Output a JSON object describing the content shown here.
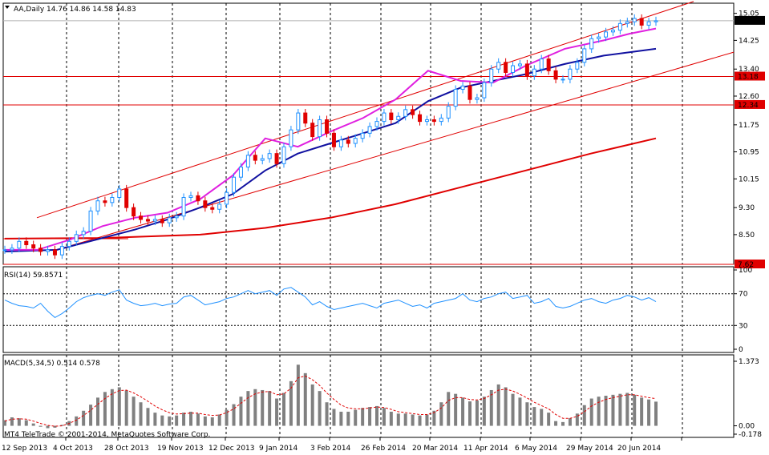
{
  "chart_data": [
    {
      "type": "candlestick",
      "title": "AA,Daily  14.76 14.86 14.58 14.83",
      "symbol": "AA",
      "timeframe": "Daily",
      "ohlc": {
        "open": 14.76,
        "high": 14.86,
        "low": 14.58,
        "close": 14.83
      },
      "yticks": [
        "15.05",
        "14.25",
        "13.40",
        "12.60",
        "11.75",
        "10.95",
        "10.15",
        "9.30",
        "8.50"
      ],
      "ylim": [
        7.62,
        15.35
      ],
      "current_price": "14.83",
      "hlines": [
        {
          "label": "13.18",
          "value": 13.18,
          "color": "#e00000"
        },
        {
          "label": "12.34",
          "value": 12.34,
          "color": "#e00000"
        },
        {
          "label": "7.62",
          "value": 7.62,
          "color": "#e00000"
        }
      ],
      "channel": {
        "upper": [
          [
            0.0,
            9.0
          ],
          [
            1.0,
            15.4
          ]
        ],
        "lower": [
          [
            0.0,
            8.02
          ],
          [
            1.0,
            13.9
          ]
        ]
      },
      "ma_fast": [
        [
          0.0,
          8.05
        ],
        [
          0.05,
          8.05
        ],
        [
          0.1,
          8.35
        ],
        [
          0.15,
          8.75
        ],
        [
          0.2,
          9.0
        ],
        [
          0.25,
          9.15
        ],
        [
          0.3,
          9.55
        ],
        [
          0.35,
          10.25
        ],
        [
          0.4,
          11.35
        ],
        [
          0.45,
          11.1
        ],
        [
          0.5,
          11.55
        ],
        [
          0.55,
          11.95
        ],
        [
          0.6,
          12.5
        ],
        [
          0.65,
          13.35
        ],
        [
          0.7,
          13.05
        ],
        [
          0.75,
          13.0
        ],
        [
          0.8,
          13.5
        ],
        [
          0.86,
          14.0
        ],
        [
          0.92,
          14.25
        ],
        [
          0.96,
          14.45
        ],
        [
          1.0,
          14.6
        ]
      ],
      "ma_mid": [
        [
          0.0,
          8.0
        ],
        [
          0.08,
          8.05
        ],
        [
          0.15,
          8.4
        ],
        [
          0.2,
          8.65
        ],
        [
          0.25,
          8.95
        ],
        [
          0.3,
          9.3
        ],
        [
          0.35,
          9.7
        ],
        [
          0.4,
          10.4
        ],
        [
          0.45,
          10.9
        ],
        [
          0.5,
          11.2
        ],
        [
          0.55,
          11.5
        ],
        [
          0.6,
          11.8
        ],
        [
          0.65,
          12.45
        ],
        [
          0.7,
          12.85
        ],
        [
          0.75,
          13.05
        ],
        [
          0.8,
          13.25
        ],
        [
          0.86,
          13.55
        ],
        [
          0.92,
          13.8
        ],
        [
          1.0,
          14.0
        ]
      ],
      "ma_slow": [
        [
          0.0,
          8.38
        ],
        [
          0.15,
          8.4
        ],
        [
          0.3,
          8.5
        ],
        [
          0.4,
          8.7
        ],
        [
          0.5,
          9.0
        ],
        [
          0.6,
          9.4
        ],
        [
          0.7,
          9.9
        ],
        [
          0.8,
          10.4
        ],
        [
          0.9,
          10.9
        ],
        [
          1.0,
          11.35
        ]
      ],
      "candles": [
        8.05,
        8.1,
        8.3,
        8.2,
        8.1,
        8.0,
        8.05,
        7.9,
        8.15,
        8.3,
        8.5,
        8.6,
        9.2,
        9.5,
        9.45,
        9.6,
        9.85,
        9.3,
        9.05,
        8.95,
        8.9,
        8.95,
        8.85,
        9.0,
        9.05,
        9.6,
        9.65,
        9.5,
        9.3,
        9.25,
        9.4,
        9.75,
        10.2,
        10.5,
        10.85,
        10.7,
        10.75,
        10.9,
        10.6,
        11.1,
        11.6,
        12.1,
        11.8,
        11.4,
        11.9,
        11.5,
        11.1,
        11.3,
        11.2,
        11.35,
        11.5,
        11.7,
        11.85,
        12.1,
        11.9,
        12.0,
        12.2,
        12.05,
        11.85,
        11.9,
        11.85,
        11.95,
        12.3,
        12.8,
        12.9,
        12.5,
        12.55,
        13.0,
        13.4,
        13.6,
        13.3,
        13.5,
        13.55,
        13.2,
        13.4,
        13.7,
        13.35,
        13.1,
        13.1,
        13.4,
        13.6,
        14.0,
        14.3,
        14.35,
        14.5,
        14.55,
        14.75,
        14.8,
        14.9,
        14.7,
        14.8,
        14.83
      ]
    },
    {
      "type": "line",
      "title": "RSI(14) 59.8571",
      "yticks": [
        "100",
        "70",
        "30",
        "0"
      ],
      "ylim": [
        0,
        100
      ],
      "levels": [
        70,
        30
      ],
      "values": [
        62,
        58,
        55,
        54,
        52,
        58,
        48,
        40,
        45,
        52,
        60,
        65,
        68,
        70,
        68,
        72,
        75,
        62,
        58,
        55,
        56,
        58,
        55,
        57,
        58,
        66,
        68,
        62,
        56,
        58,
        60,
        64,
        66,
        70,
        74,
        70,
        72,
        74,
        68,
        76,
        78,
        72,
        66,
        56,
        60,
        54,
        50,
        52,
        54,
        56,
        58,
        55,
        52,
        58,
        60,
        62,
        58,
        54,
        56,
        52,
        58,
        60,
        62,
        64,
        70,
        62,
        60,
        64,
        66,
        70,
        72,
        64,
        66,
        68,
        58,
        60,
        64,
        54,
        52,
        54,
        58,
        62,
        64,
        60,
        58,
        62,
        64,
        68,
        66,
        62,
        65,
        60
      ]
    },
    {
      "type": "bar",
      "title": "MACD(5,34,5) 0.514 0.578",
      "yticks": [
        "1.373",
        "0.00",
        "-0.178"
      ],
      "ylim": [
        -0.178,
        1.373
      ],
      "values": [
        0.12,
        0.18,
        0.16,
        0.12,
        0.05,
        -0.02,
        -0.05,
        -0.04,
        0.02,
        0.1,
        0.2,
        0.32,
        0.45,
        0.6,
        0.72,
        0.78,
        0.82,
        0.75,
        0.62,
        0.5,
        0.38,
        0.28,
        0.22,
        0.2,
        0.22,
        0.28,
        0.3,
        0.26,
        0.2,
        0.18,
        0.24,
        0.34,
        0.46,
        0.62,
        0.74,
        0.78,
        0.76,
        0.74,
        0.58,
        0.7,
        0.95,
        1.3,
        1.12,
        0.88,
        0.74,
        0.5,
        0.36,
        0.3,
        0.3,
        0.34,
        0.38,
        0.4,
        0.42,
        0.38,
        0.3,
        0.26,
        0.26,
        0.24,
        0.22,
        0.24,
        0.32,
        0.5,
        0.72,
        0.68,
        0.6,
        0.52,
        0.54,
        0.62,
        0.76,
        0.88,
        0.82,
        0.68,
        0.6,
        0.5,
        0.4,
        0.36,
        0.28,
        0.1,
        0.08,
        0.16,
        0.26,
        0.44,
        0.58,
        0.62,
        0.64,
        0.66,
        0.68,
        0.7,
        0.66,
        0.6,
        0.56,
        0.514
      ],
      "signal": [
        0.1,
        0.14,
        0.15,
        0.14,
        0.1,
        0.05,
        0.01,
        -0.01,
        0.0,
        0.05,
        0.12,
        0.22,
        0.33,
        0.46,
        0.58,
        0.68,
        0.75,
        0.76,
        0.7,
        0.62,
        0.52,
        0.42,
        0.34,
        0.28,
        0.25,
        0.26,
        0.27,
        0.27,
        0.24,
        0.22,
        0.23,
        0.28,
        0.36,
        0.48,
        0.6,
        0.68,
        0.72,
        0.73,
        0.66,
        0.68,
        0.8,
        1.02,
        1.06,
        0.98,
        0.86,
        0.7,
        0.56,
        0.44,
        0.38,
        0.36,
        0.36,
        0.38,
        0.4,
        0.39,
        0.35,
        0.3,
        0.28,
        0.26,
        0.24,
        0.24,
        0.28,
        0.38,
        0.54,
        0.6,
        0.6,
        0.56,
        0.55,
        0.58,
        0.66,
        0.76,
        0.78,
        0.74,
        0.67,
        0.59,
        0.5,
        0.43,
        0.36,
        0.24,
        0.16,
        0.16,
        0.2,
        0.3,
        0.42,
        0.5,
        0.56,
        0.6,
        0.63,
        0.66,
        0.66,
        0.63,
        0.6,
        0.578
      ]
    }
  ],
  "xaxis_labels": [
    "12 Sep 2013",
    "4 Oct 2013",
    "28 Oct 2013",
    "19 Nov 2013",
    "12 Dec 2013",
    "9 Jan 2014",
    "3 Feb 2014",
    "26 Feb 2014",
    "20 Mar 2014",
    "11 Apr 2014",
    "6 May 2014",
    "29 May 2014",
    "20 Jun 2014"
  ],
  "copyright": "MT4 TeleTrade © 2001-2014, MetaQuotes Software Corp.",
  "colors": {
    "bull": "#1e90ff",
    "bear": "#e00000",
    "ma_fast": "#e020e0",
    "ma_mid": "#1010a0",
    "ma_slow": "#e00000",
    "channel": "#e00000",
    "rsi": "#1e90ff",
    "macd_bars": "#808080",
    "macd_signal": "#e00000",
    "label_bg": "#e00000",
    "price_bg": "#000000"
  }
}
